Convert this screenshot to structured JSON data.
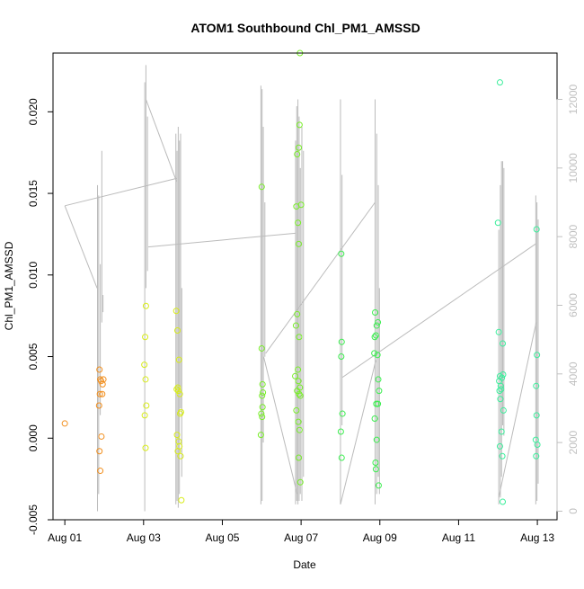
{
  "chart_data": {
    "type": "scatter",
    "title": "ATOM1 Southbound Chl_PM1_AMSSD",
    "xlabel": "Date",
    "ylabel": "Chl_PM1_AMSSD",
    "x_ticks": [
      {
        "label": "Aug 01",
        "day": 1
      },
      {
        "label": "Aug 03",
        "day": 3
      },
      {
        "label": "Aug 05",
        "day": 5
      },
      {
        "label": "Aug 07",
        "day": 7
      },
      {
        "label": "Aug 09",
        "day": 9
      },
      {
        "label": "Aug 11",
        "day": 11
      },
      {
        "label": "Aug 13",
        "day": 13
      }
    ],
    "xlim": [
      0.7,
      13.5
    ],
    "y_left": {
      "ticks": [
        -0.005,
        0.0,
        0.005,
        0.01,
        0.015,
        0.02
      ],
      "tick_labels": [
        "-0.005",
        "0.000",
        "0.005",
        "0.010",
        "0.015",
        "0.020"
      ],
      "ylim": [
        -0.005,
        0.0236
      ]
    },
    "y_right": {
      "ticks": [
        0,
        2000,
        4000,
        6000,
        8000,
        10000,
        12000
      ],
      "tick_labels": [
        "0",
        "2000",
        "4000",
        "6000",
        "8000",
        "10000",
        "12000"
      ],
      "ylim": [
        -250,
        13350
      ],
      "color": "#c0c0c0"
    },
    "colors": {
      "aug01": "#f28e1c",
      "aug03": "#d8ec1a",
      "aug07": "#78ee28",
      "aug09": "#3cee50",
      "aug12": "#3cee9c",
      "secondary": "#bbbbbb"
    },
    "series": [
      {
        "date_group": "aug01",
        "color": "#f28e1c",
        "points": [
          {
            "x": 1.0,
            "y": 0.0009
          },
          {
            "x": 1.88,
            "y": 0.0042
          },
          {
            "x": 1.9,
            "y": 0.0036
          },
          {
            "x": 1.92,
            "y": 0.0035
          },
          {
            "x": 1.96,
            "y": 0.0033
          },
          {
            "x": 1.98,
            "y": 0.0036
          },
          {
            "x": 1.89,
            "y": 0.0027
          },
          {
            "x": 1.95,
            "y": 0.0027
          },
          {
            "x": 1.87,
            "y": 0.002
          },
          {
            "x": 1.93,
            "y": 0.0001
          },
          {
            "x": 1.88,
            "y": -0.0008
          },
          {
            "x": 1.9,
            "y": -0.002
          }
        ]
      },
      {
        "date_group": "aug03",
        "color": "#d8ec1a",
        "points": [
          {
            "x": 3.06,
            "y": 0.0081
          },
          {
            "x": 3.04,
            "y": 0.0062
          },
          {
            "x": 3.02,
            "y": 0.0045
          },
          {
            "x": 3.05,
            "y": 0.0036
          },
          {
            "x": 3.07,
            "y": 0.002
          },
          {
            "x": 3.03,
            "y": 0.0014
          },
          {
            "x": 3.05,
            "y": -0.0006
          },
          {
            "x": 3.83,
            "y": 0.0078
          },
          {
            "x": 3.86,
            "y": 0.0066
          },
          {
            "x": 3.9,
            "y": 0.0048
          },
          {
            "x": 3.84,
            "y": 0.003
          },
          {
            "x": 3.88,
            "y": 0.0029
          },
          {
            "x": 3.92,
            "y": 0.0027
          },
          {
            "x": 3.87,
            "y": 0.0031
          },
          {
            "x": 3.95,
            "y": 0.0016
          },
          {
            "x": 3.93,
            "y": 0.0015
          },
          {
            "x": 3.85,
            "y": 0.0002
          },
          {
            "x": 3.89,
            "y": -0.0002
          },
          {
            "x": 3.91,
            "y": -0.0005
          },
          {
            "x": 3.87,
            "y": -0.0008
          },
          {
            "x": 3.94,
            "y": -0.0011
          },
          {
            "x": 3.96,
            "y": -0.0038
          }
        ]
      },
      {
        "date_group": "aug06",
        "color": "#78ee28",
        "points": [
          {
            "x": 6.0,
            "y": 0.0154
          },
          {
            "x": 6.0,
            "y": 0.0055
          },
          {
            "x": 6.02,
            "y": 0.0033
          },
          {
            "x": 6.03,
            "y": 0.0028
          },
          {
            "x": 6.01,
            "y": 0.0026
          },
          {
            "x": 6.02,
            "y": 0.0019
          },
          {
            "x": 5.99,
            "y": 0.0015
          },
          {
            "x": 6.01,
            "y": 0.0013
          },
          {
            "x": 5.98,
            "y": 0.0002
          },
          {
            "x": 6.97,
            "y": 0.0236
          },
          {
            "x": 6.96,
            "y": 0.0192
          },
          {
            "x": 6.9,
            "y": 0.0174
          },
          {
            "x": 6.94,
            "y": 0.0178
          },
          {
            "x": 6.88,
            "y": 0.0142
          },
          {
            "x": 7.0,
            "y": 0.0143
          },
          {
            "x": 6.92,
            "y": 0.0132
          },
          {
            "x": 6.94,
            "y": 0.0119
          },
          {
            "x": 6.9,
            "y": 0.0076
          },
          {
            "x": 6.87,
            "y": 0.0069
          },
          {
            "x": 6.95,
            "y": 0.0062
          },
          {
            "x": 6.92,
            "y": 0.0042
          },
          {
            "x": 6.85,
            "y": 0.0038
          },
          {
            "x": 6.93,
            "y": 0.0035
          },
          {
            "x": 6.97,
            "y": 0.0031
          },
          {
            "x": 6.9,
            "y": 0.0029
          },
          {
            "x": 6.95,
            "y": 0.0027
          },
          {
            "x": 6.98,
            "y": 0.0026
          },
          {
            "x": 6.88,
            "y": 0.0017
          },
          {
            "x": 6.93,
            "y": 0.001
          },
          {
            "x": 6.96,
            "y": 0.0005
          },
          {
            "x": 6.94,
            "y": -0.0012
          },
          {
            "x": 6.98,
            "y": -0.0027
          }
        ]
      },
      {
        "date_group": "aug09",
        "color": "#3cee50",
        "points": [
          {
            "x": 8.02,
            "y": 0.0113
          },
          {
            "x": 8.03,
            "y": 0.0059
          },
          {
            "x": 8.02,
            "y": 0.005
          },
          {
            "x": 8.05,
            "y": 0.0015
          },
          {
            "x": 8.01,
            "y": 0.0004
          },
          {
            "x": 8.03,
            "y": -0.0012
          },
          {
            "x": 8.88,
            "y": 0.0077
          },
          {
            "x": 8.95,
            "y": 0.0071
          },
          {
            "x": 8.92,
            "y": 0.0069
          },
          {
            "x": 8.87,
            "y": 0.0062
          },
          {
            "x": 8.9,
            "y": 0.0063
          },
          {
            "x": 8.86,
            "y": 0.0052
          },
          {
            "x": 8.94,
            "y": 0.0051
          },
          {
            "x": 8.96,
            "y": 0.0036
          },
          {
            "x": 8.98,
            "y": 0.0029
          },
          {
            "x": 8.91,
            "y": 0.0021
          },
          {
            "x": 8.95,
            "y": 0.0021
          },
          {
            "x": 8.87,
            "y": 0.0012
          },
          {
            "x": 8.92,
            "y": -0.0001
          },
          {
            "x": 8.89,
            "y": -0.0015
          },
          {
            "x": 8.9,
            "y": -0.0019
          },
          {
            "x": 8.97,
            "y": -0.0029
          }
        ]
      },
      {
        "date_group": "aug12",
        "color": "#3cee9c",
        "points": [
          {
            "x": 12.05,
            "y": 0.0218
          },
          {
            "x": 12.0,
            "y": 0.0132
          },
          {
            "x": 12.02,
            "y": 0.0065
          },
          {
            "x": 12.12,
            "y": 0.0058
          },
          {
            "x": 12.13,
            "y": 0.0039
          },
          {
            "x": 12.05,
            "y": 0.0038
          },
          {
            "x": 12.1,
            "y": 0.0037
          },
          {
            "x": 12.03,
            "y": 0.0035
          },
          {
            "x": 12.07,
            "y": 0.0032
          },
          {
            "x": 12.08,
            "y": 0.003
          },
          {
            "x": 12.04,
            "y": 0.0029
          },
          {
            "x": 12.06,
            "y": 0.0024
          },
          {
            "x": 12.14,
            "y": 0.0017
          },
          {
            "x": 12.09,
            "y": 0.0004
          },
          {
            "x": 12.05,
            "y": -0.0005
          },
          {
            "x": 12.11,
            "y": -0.0011
          },
          {
            "x": 12.12,
            "y": -0.0039
          },
          {
            "x": 12.98,
            "y": 0.0128
          },
          {
            "x": 12.99,
            "y": 0.0051
          },
          {
            "x": 12.97,
            "y": 0.0032
          },
          {
            "x": 12.98,
            "y": 0.0014
          },
          {
            "x": 12.96,
            "y": -0.0001
          },
          {
            "x": 13.0,
            "y": -0.0004
          },
          {
            "x": 12.97,
            "y": -0.0011
          }
        ]
      }
    ],
    "secondary_series": {
      "color": "#bbbbbb",
      "spikes": [
        {
          "x": 1.83,
          "ymin": 0,
          "ymax": 9500
        },
        {
          "x": 1.86,
          "ymin": 500,
          "ymax": 9200
        },
        {
          "x": 1.9,
          "ymin": 2800,
          "ymax": 7200
        },
        {
          "x": 1.94,
          "ymin": 5500,
          "ymax": 10500
        },
        {
          "x": 1.97,
          "ymin": 5800,
          "ymax": 6300
        },
        {
          "x": 3.03,
          "ymin": 0,
          "ymax": 12500
        },
        {
          "x": 3.06,
          "ymin": 6500,
          "ymax": 13000
        },
        {
          "x": 3.1,
          "ymin": 7000,
          "ymax": 11500
        },
        {
          "x": 3.82,
          "ymin": 200,
          "ymax": 11000
        },
        {
          "x": 3.85,
          "ymin": 300,
          "ymax": 10500
        },
        {
          "x": 3.88,
          "ymin": 100,
          "ymax": 11200
        },
        {
          "x": 3.91,
          "ymin": 500,
          "ymax": 10800
        },
        {
          "x": 3.94,
          "ymin": 3000,
          "ymax": 11000
        },
        {
          "x": 3.97,
          "ymin": 1000,
          "ymax": 6500
        },
        {
          "x": 5.98,
          "ymin": 200,
          "ymax": 12400
        },
        {
          "x": 6.01,
          "ymin": 300,
          "ymax": 12300
        },
        {
          "x": 6.04,
          "ymin": 2000,
          "ymax": 11200
        },
        {
          "x": 6.08,
          "ymin": 4500,
          "ymax": 9000
        },
        {
          "x": 6.86,
          "ymin": 200,
          "ymax": 10800
        },
        {
          "x": 6.89,
          "ymin": 300,
          "ymax": 11800
        },
        {
          "x": 6.92,
          "ymin": 200,
          "ymax": 12000
        },
        {
          "x": 6.95,
          "ymin": 300,
          "ymax": 11500
        },
        {
          "x": 6.98,
          "ymin": 500,
          "ymax": 10000
        },
        {
          "x": 7.02,
          "ymin": 300,
          "ymax": 11200
        },
        {
          "x": 7.06,
          "ymin": 1000,
          "ymax": 10500
        },
        {
          "x": 8.0,
          "ymin": 200,
          "ymax": 12000
        },
        {
          "x": 8.04,
          "ymin": 2500,
          "ymax": 9800
        },
        {
          "x": 8.88,
          "ymin": 200,
          "ymax": 12000
        },
        {
          "x": 8.92,
          "ymin": 500,
          "ymax": 11000
        },
        {
          "x": 8.96,
          "ymin": 1000,
          "ymax": 9500
        },
        {
          "x": 8.99,
          "ymin": 500,
          "ymax": 6500
        },
        {
          "x": 12.02,
          "ymin": 200,
          "ymax": 8200
        },
        {
          "x": 12.06,
          "ymin": 400,
          "ymax": 9500
        },
        {
          "x": 12.09,
          "ymin": 1000,
          "ymax": 10200
        },
        {
          "x": 12.12,
          "ymin": 2500,
          "ymax": 10200
        },
        {
          "x": 12.15,
          "ymin": 2200,
          "ymax": 10000
        },
        {
          "x": 12.96,
          "ymin": 200,
          "ymax": 9200
        },
        {
          "x": 12.99,
          "ymin": 300,
          "ymax": 9000
        },
        {
          "x": 13.02,
          "ymin": 800,
          "ymax": 8500
        }
      ],
      "connectors": [
        [
          {
            "x": 1.0,
            "y": 8900
          },
          {
            "x": 1.82,
            "y": 6500
          }
        ],
        [
          {
            "x": 1.0,
            "y": 8900
          },
          {
            "x": 3.85,
            "y": 9700
          }
        ],
        [
          {
            "x": 3.06,
            "y": 12000
          },
          {
            "x": 3.84,
            "y": 9600
          }
        ],
        [
          {
            "x": 3.12,
            "y": 7700
          },
          {
            "x": 6.85,
            "y": 8100
          }
        ],
        [
          {
            "x": 6.05,
            "y": 4500
          },
          {
            "x": 6.9,
            "y": 500
          }
        ],
        [
          {
            "x": 6.1,
            "y": 4600
          },
          {
            "x": 8.88,
            "y": 9000
          }
        ],
        [
          {
            "x": 8.0,
            "y": 200
          },
          {
            "x": 8.9,
            "y": 4400
          }
        ],
        [
          {
            "x": 8.05,
            "y": 3900
          },
          {
            "x": 12.97,
            "y": 7800
          }
        ],
        [
          {
            "x": 12.02,
            "y": 400
          },
          {
            "x": 12.97,
            "y": 5500
          }
        ]
      ]
    }
  }
}
